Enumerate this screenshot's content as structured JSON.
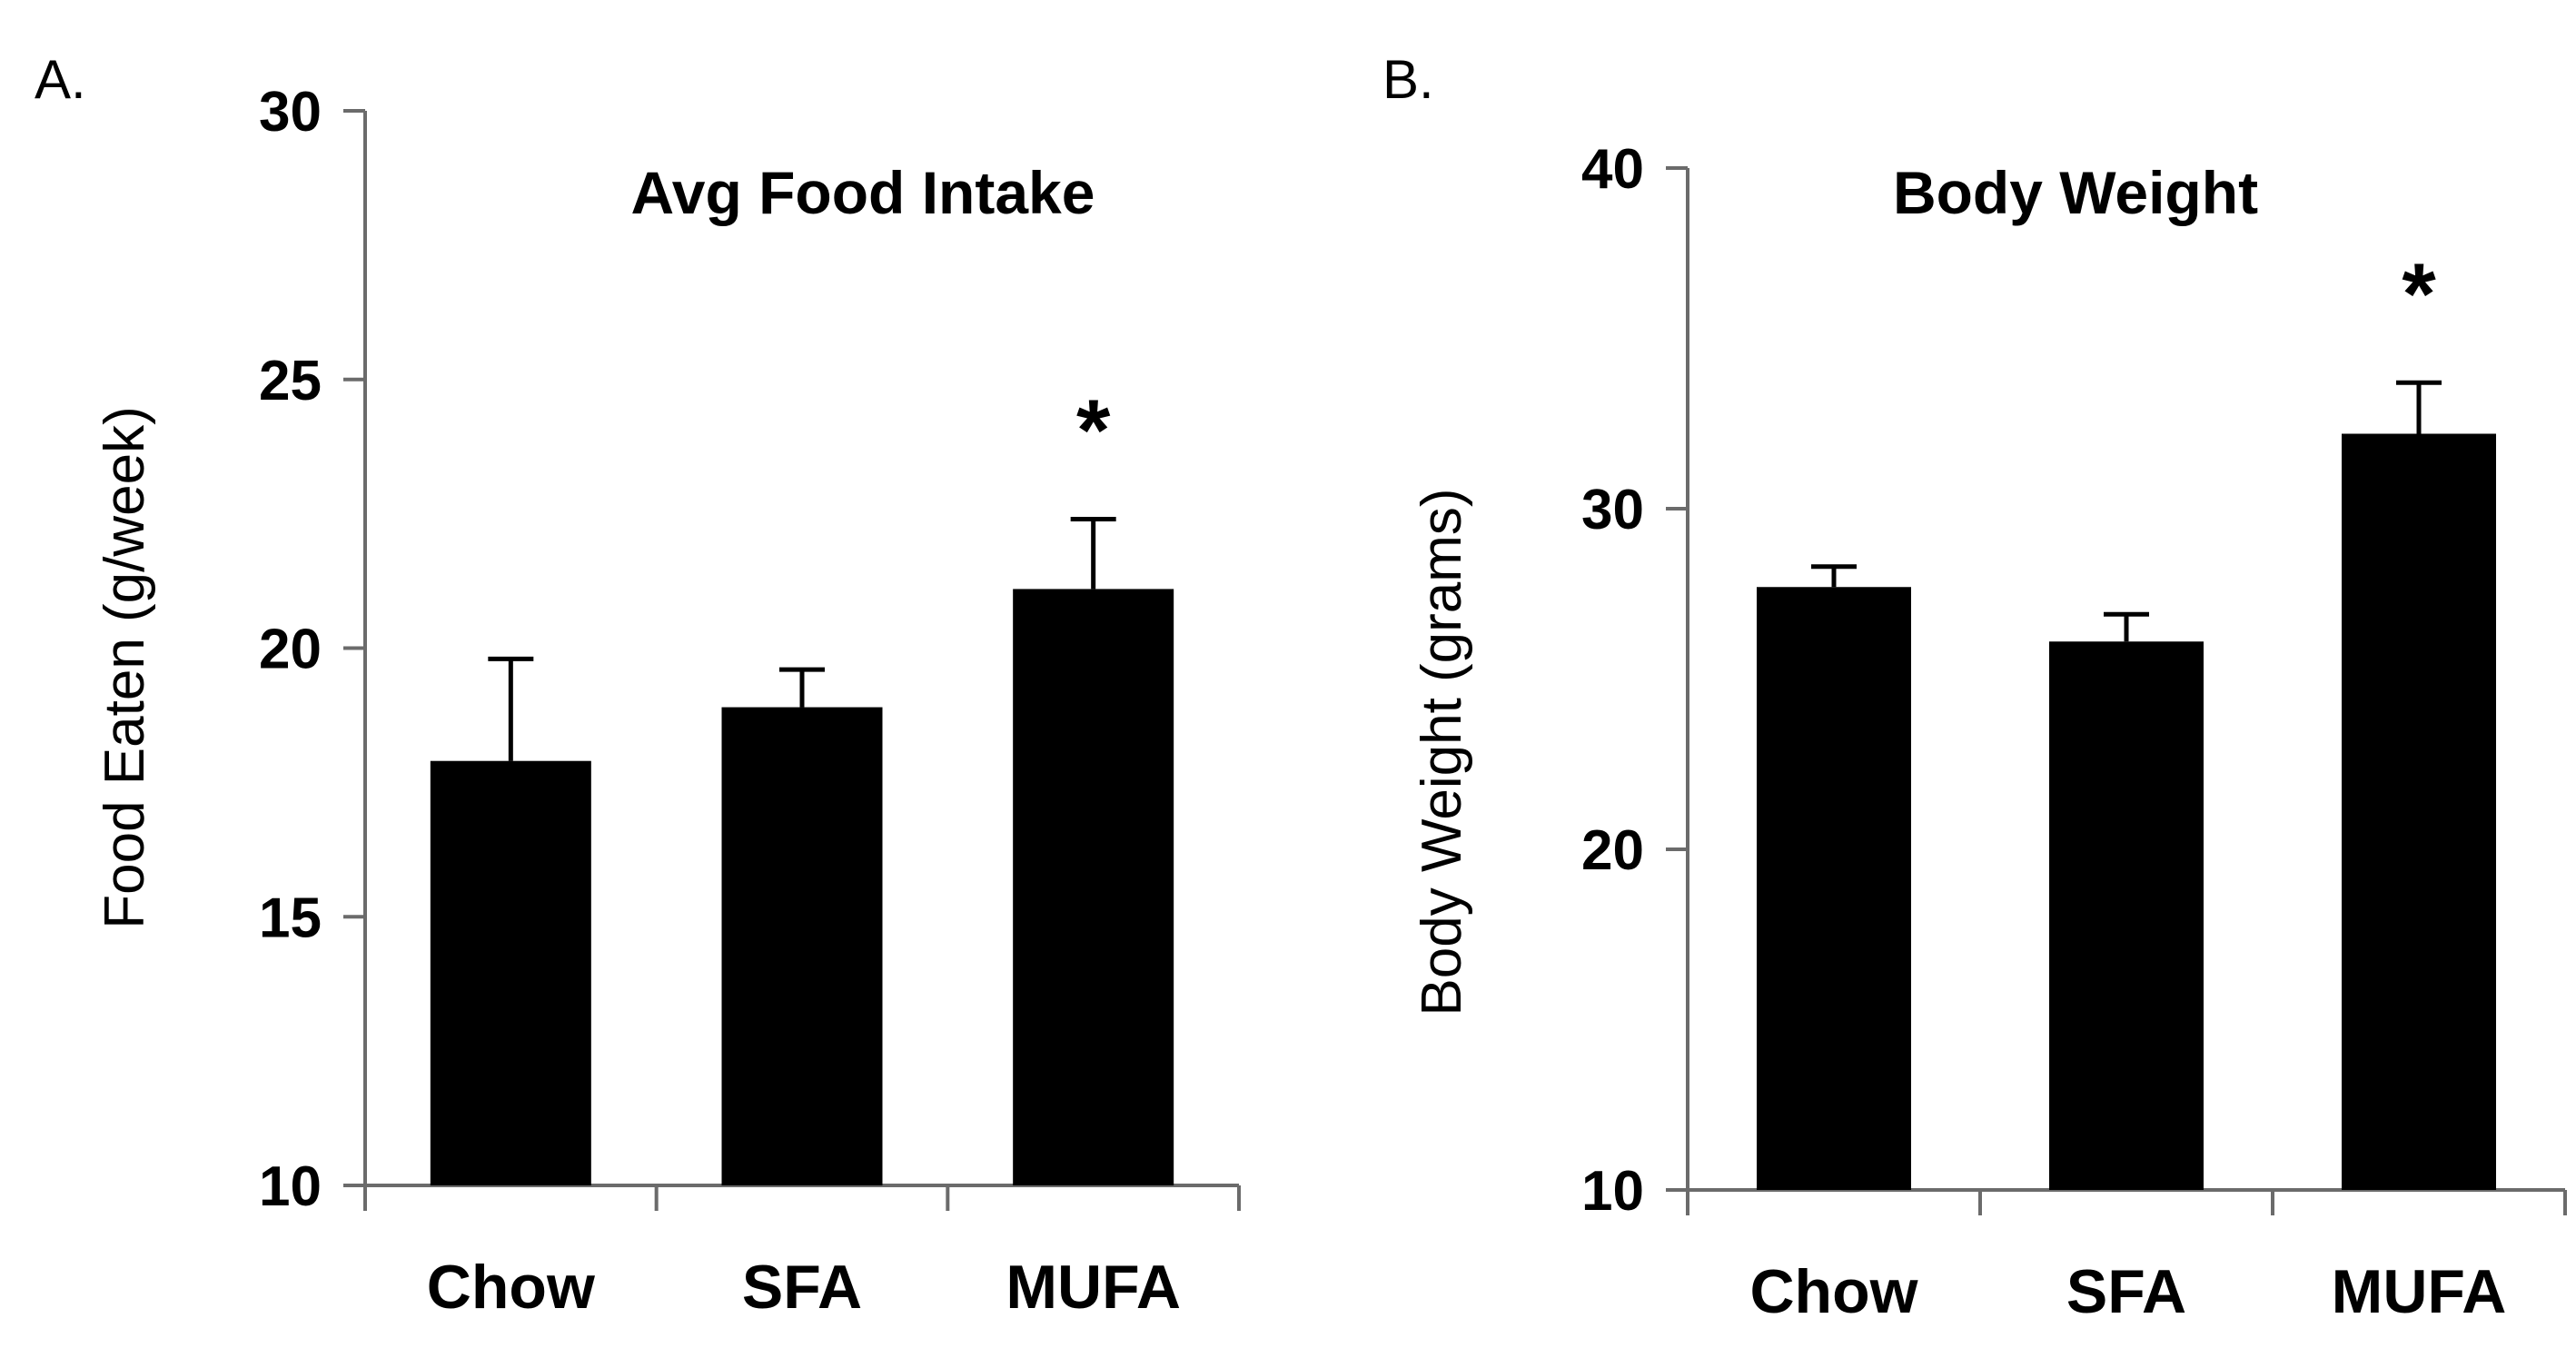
{
  "chart_data": [
    {
      "panel": "A.",
      "type": "bar",
      "title": "Avg Food Intake",
      "xlabel": "",
      "ylabel": "Food Eaten (g/week)",
      "categories": [
        "Chow",
        "SFA",
        "MUFA"
      ],
      "values": [
        17.9,
        18.9,
        21.1
      ],
      "errors": [
        1.9,
        0.7,
        1.3
      ],
      "significance": [
        "",
        "",
        "*"
      ],
      "ylim": [
        10,
        30
      ],
      "yticks": [
        10,
        15,
        20,
        25,
        30
      ],
      "grid": false,
      "colors": {
        "bar": "#000000",
        "axis": "#6b6b6b"
      }
    },
    {
      "panel": "B.",
      "type": "bar",
      "title": "Body Weight",
      "xlabel": "",
      "ylabel": "Body Weight (grams)",
      "categories": [
        "Chow",
        "SFA",
        "MUFA"
      ],
      "values": [
        27.7,
        26.1,
        32.2
      ],
      "errors": [
        0.6,
        0.8,
        1.5
      ],
      "significance": [
        "",
        "",
        "*"
      ],
      "ylim": [
        10,
        40
      ],
      "yticks": [
        10,
        20,
        30,
        40
      ],
      "grid": false,
      "colors": {
        "bar": "#000000",
        "axis": "#6b6b6b"
      }
    }
  ]
}
